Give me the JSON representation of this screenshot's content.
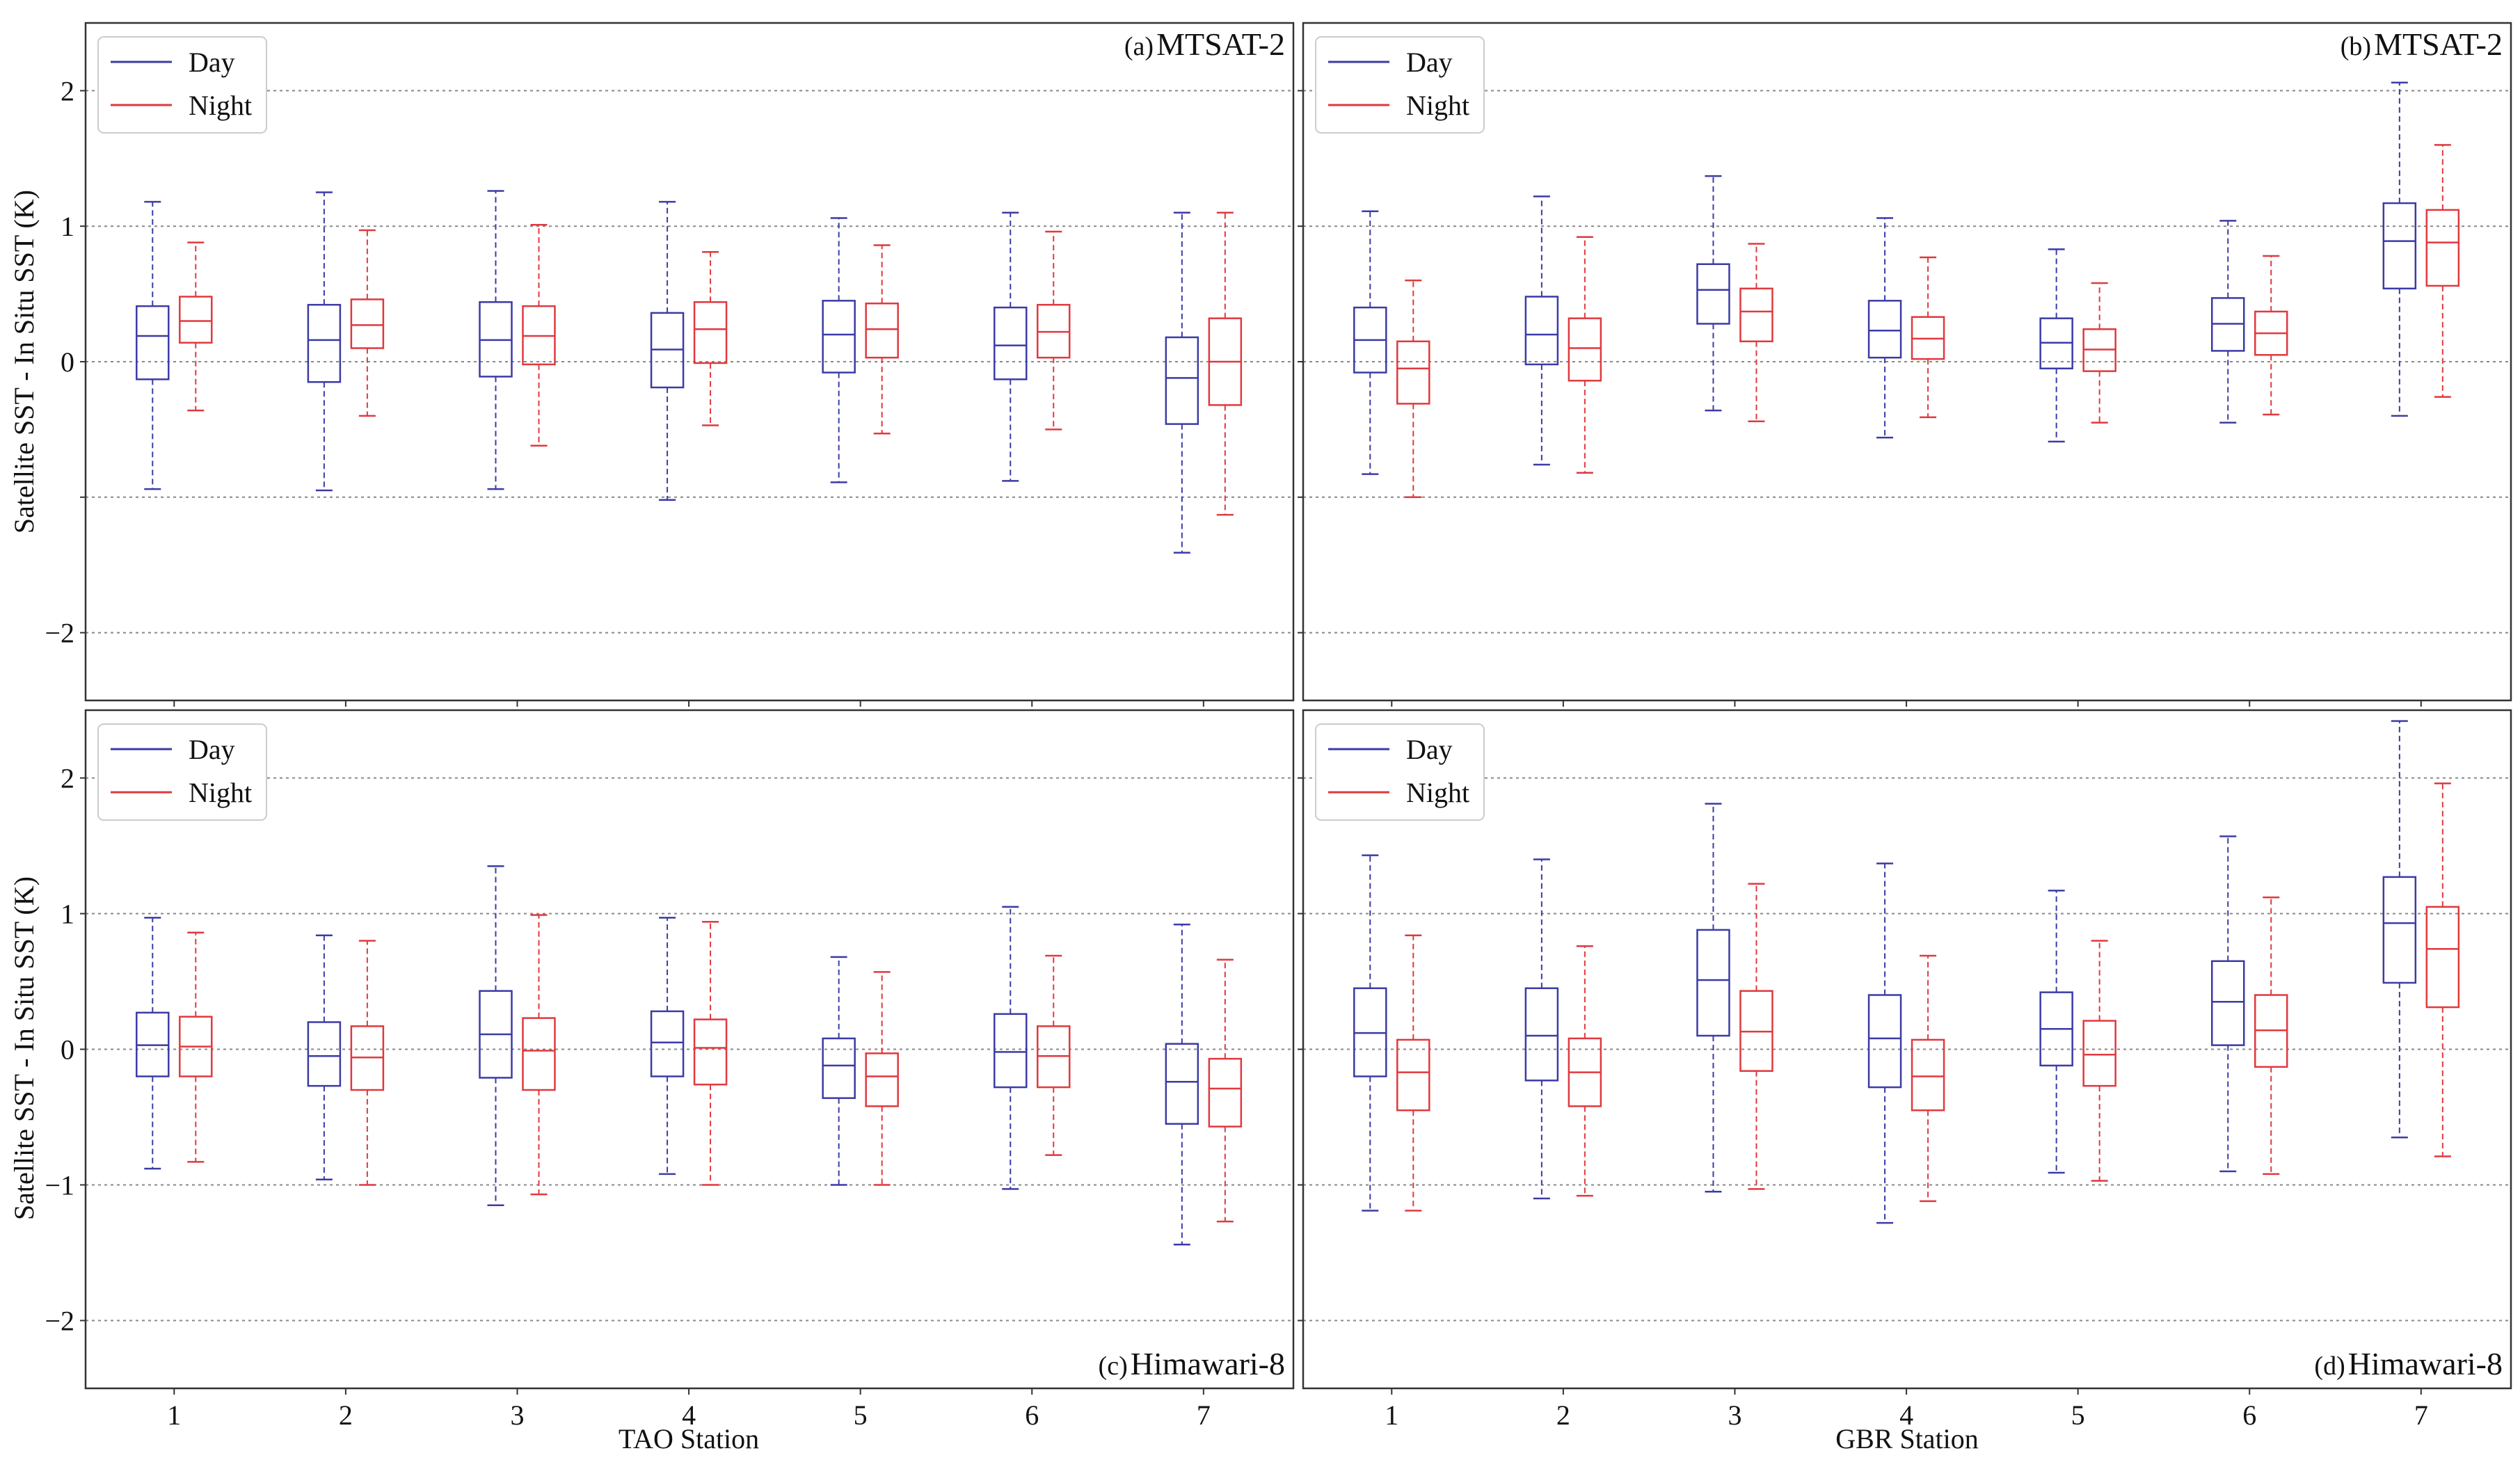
{
  "figure": {
    "ylabel": "Satellite SST - In Situ SST (K)",
    "xlabel_left": "TAO Station",
    "xlabel_right": "GBR Station"
  },
  "legend": {
    "day_label": "Day",
    "night_label": "Night"
  },
  "colors": {
    "day": "#3b3ba6",
    "night": "#e0393e",
    "grid": "#888888",
    "axis": "#333333"
  },
  "chart_data": [
    {
      "id": "a",
      "type": "box",
      "tag": "(a)",
      "title": "MTSAT-2",
      "xlabel": "",
      "ylabel": "Satellite SST - In Situ SST (K)",
      "ylim": [
        -2.5,
        2.5
      ],
      "yticks": [
        "2",
        "1",
        "0",
        "−2"
      ],
      "categories": [
        "1",
        "2",
        "3",
        "4",
        "5",
        "6",
        "7"
      ],
      "series": [
        {
          "name": "Day",
          "boxes": [
            {
              "wlo": -0.94,
              "q1": -0.13,
              "med": 0.19,
              "q3": 0.41,
              "whi": 1.18
            },
            {
              "wlo": -0.95,
              "q1": -0.15,
              "med": 0.16,
              "q3": 0.42,
              "whi": 1.25
            },
            {
              "wlo": -0.94,
              "q1": -0.11,
              "med": 0.16,
              "q3": 0.44,
              "whi": 1.26
            },
            {
              "wlo": -1.02,
              "q1": -0.19,
              "med": 0.09,
              "q3": 0.36,
              "whi": 1.18
            },
            {
              "wlo": -0.89,
              "q1": -0.08,
              "med": 0.2,
              "q3": 0.45,
              "whi": 1.06
            },
            {
              "wlo": -0.88,
              "q1": -0.13,
              "med": 0.12,
              "q3": 0.4,
              "whi": 1.1
            },
            {
              "wlo": -1.41,
              "q1": -0.46,
              "med": -0.12,
              "q3": 0.18,
              "whi": 1.1
            }
          ]
        },
        {
          "name": "Night",
          "boxes": [
            {
              "wlo": -0.36,
              "q1": 0.14,
              "med": 0.3,
              "q3": 0.48,
              "whi": 0.88
            },
            {
              "wlo": -0.4,
              "q1": 0.1,
              "med": 0.27,
              "q3": 0.46,
              "whi": 0.97
            },
            {
              "wlo": -0.62,
              "q1": -0.02,
              "med": 0.19,
              "q3": 0.41,
              "whi": 1.01
            },
            {
              "wlo": -0.47,
              "q1": -0.01,
              "med": 0.24,
              "q3": 0.44,
              "whi": 0.81
            },
            {
              "wlo": -0.53,
              "q1": 0.03,
              "med": 0.24,
              "q3": 0.43,
              "whi": 0.86
            },
            {
              "wlo": -0.5,
              "q1": 0.03,
              "med": 0.22,
              "q3": 0.42,
              "whi": 0.96
            },
            {
              "wlo": -1.13,
              "q1": -0.32,
              "med": 0.0,
              "q3": 0.32,
              "whi": 1.1
            }
          ]
        }
      ]
    },
    {
      "id": "b",
      "type": "box",
      "tag": "(b)",
      "title": "MTSAT-2",
      "xlabel": "",
      "ylabel": "",
      "ylim": [
        -2.5,
        2.5
      ],
      "yticks": [],
      "categories": [
        "1",
        "2",
        "3",
        "4",
        "5",
        "6",
        "7"
      ],
      "series": [
        {
          "name": "Day",
          "boxes": [
            {
              "wlo": -0.83,
              "q1": -0.08,
              "med": 0.16,
              "q3": 0.4,
              "whi": 1.11
            },
            {
              "wlo": -0.76,
              "q1": -0.02,
              "med": 0.2,
              "q3": 0.48,
              "whi": 1.22
            },
            {
              "wlo": -0.36,
              "q1": 0.28,
              "med": 0.53,
              "q3": 0.72,
              "whi": 1.37
            },
            {
              "wlo": -0.56,
              "q1": 0.03,
              "med": 0.23,
              "q3": 0.45,
              "whi": 1.06
            },
            {
              "wlo": -0.59,
              "q1": -0.05,
              "med": 0.14,
              "q3": 0.32,
              "whi": 0.83
            },
            {
              "wlo": -0.45,
              "q1": 0.08,
              "med": 0.28,
              "q3": 0.47,
              "whi": 1.04
            },
            {
              "wlo": -0.4,
              "q1": 0.54,
              "med": 0.89,
              "q3": 1.17,
              "whi": 2.06
            }
          ]
        },
        {
          "name": "Night",
          "boxes": [
            {
              "wlo": -1.0,
              "q1": -0.31,
              "med": -0.05,
              "q3": 0.15,
              "whi": 0.6
            },
            {
              "wlo": -0.82,
              "q1": -0.14,
              "med": 0.1,
              "q3": 0.32,
              "whi": 0.92
            },
            {
              "wlo": -0.44,
              "q1": 0.15,
              "med": 0.37,
              "q3": 0.54,
              "whi": 0.87
            },
            {
              "wlo": -0.41,
              "q1": 0.02,
              "med": 0.17,
              "q3": 0.33,
              "whi": 0.77
            },
            {
              "wlo": -0.45,
              "q1": -0.07,
              "med": 0.09,
              "q3": 0.24,
              "whi": 0.58
            },
            {
              "wlo": -0.39,
              "q1": 0.05,
              "med": 0.21,
              "q3": 0.37,
              "whi": 0.78
            },
            {
              "wlo": -0.26,
              "q1": 0.56,
              "med": 0.88,
              "q3": 1.12,
              "whi": 1.6
            }
          ]
        }
      ]
    },
    {
      "id": "c",
      "type": "box",
      "tag": "(c)",
      "title": "Himawari-8",
      "xlabel": "TAO Station",
      "ylabel": "Satellite SST - In Situ SST (K)",
      "ylim": [
        -2.5,
        2.5
      ],
      "yticks": [
        "2",
        "1",
        "0",
        "−1",
        "−2"
      ],
      "categories": [
        "1",
        "2",
        "3",
        "4",
        "5",
        "6",
        "7"
      ],
      "series": [
        {
          "name": "Day",
          "boxes": [
            {
              "wlo": -0.88,
              "q1": -0.2,
              "med": 0.03,
              "q3": 0.27,
              "whi": 0.97
            },
            {
              "wlo": -0.96,
              "q1": -0.27,
              "med": -0.05,
              "q3": 0.2,
              "whi": 0.84
            },
            {
              "wlo": -1.15,
              "q1": -0.21,
              "med": 0.11,
              "q3": 0.43,
              "whi": 1.35
            },
            {
              "wlo": -0.92,
              "q1": -0.2,
              "med": 0.05,
              "q3": 0.28,
              "whi": 0.97
            },
            {
              "wlo": -1.0,
              "q1": -0.36,
              "med": -0.12,
              "q3": 0.08,
              "whi": 0.68
            },
            {
              "wlo": -1.03,
              "q1": -0.28,
              "med": -0.02,
              "q3": 0.26,
              "whi": 1.05
            },
            {
              "wlo": -1.44,
              "q1": -0.55,
              "med": -0.24,
              "q3": 0.04,
              "whi": 0.92
            }
          ]
        },
        {
          "name": "Night",
          "boxes": [
            {
              "wlo": -0.83,
              "q1": -0.2,
              "med": 0.02,
              "q3": 0.24,
              "whi": 0.86
            },
            {
              "wlo": -1.0,
              "q1": -0.3,
              "med": -0.06,
              "q3": 0.17,
              "whi": 0.8
            },
            {
              "wlo": -1.07,
              "q1": -0.3,
              "med": -0.01,
              "q3": 0.23,
              "whi": 0.99
            },
            {
              "wlo": -1.0,
              "q1": -0.26,
              "med": 0.01,
              "q3": 0.22,
              "whi": 0.94
            },
            {
              "wlo": -1.0,
              "q1": -0.42,
              "med": -0.2,
              "q3": -0.03,
              "whi": 0.57
            },
            {
              "wlo": -0.78,
              "q1": -0.28,
              "med": -0.05,
              "q3": 0.17,
              "whi": 0.69
            },
            {
              "wlo": -1.27,
              "q1": -0.57,
              "med": -0.29,
              "q3": -0.07,
              "whi": 0.66
            }
          ]
        }
      ]
    },
    {
      "id": "d",
      "type": "box",
      "tag": "(d)",
      "title": "Himawari-8",
      "xlabel": "GBR Station",
      "ylabel": "",
      "ylim": [
        -2.5,
        2.5
      ],
      "yticks": [],
      "categories": [
        "1",
        "2",
        "3",
        "4",
        "5",
        "6",
        "7"
      ],
      "series": [
        {
          "name": "Day",
          "boxes": [
            {
              "wlo": -1.19,
              "q1": -0.2,
              "med": 0.12,
              "q3": 0.45,
              "whi": 1.43
            },
            {
              "wlo": -1.1,
              "q1": -0.23,
              "med": 0.1,
              "q3": 0.45,
              "whi": 1.4
            },
            {
              "wlo": -1.05,
              "q1": 0.1,
              "med": 0.51,
              "q3": 0.88,
              "whi": 1.81
            },
            {
              "wlo": -1.28,
              "q1": -0.28,
              "med": 0.08,
              "q3": 0.4,
              "whi": 1.37
            },
            {
              "wlo": -0.91,
              "q1": -0.12,
              "med": 0.15,
              "q3": 0.42,
              "whi": 1.17
            },
            {
              "wlo": -0.9,
              "q1": 0.03,
              "med": 0.35,
              "q3": 0.65,
              "whi": 1.57
            },
            {
              "wlo": -0.65,
              "q1": 0.49,
              "med": 0.93,
              "q3": 1.27,
              "whi": 2.42
            }
          ]
        },
        {
          "name": "Night",
          "boxes": [
            {
              "wlo": -1.19,
              "q1": -0.45,
              "med": -0.17,
              "q3": 0.07,
              "whi": 0.84
            },
            {
              "wlo": -1.08,
              "q1": -0.42,
              "med": -0.17,
              "q3": 0.08,
              "whi": 0.76
            },
            {
              "wlo": -1.03,
              "q1": -0.16,
              "med": 0.13,
              "q3": 0.43,
              "whi": 1.22
            },
            {
              "wlo": -1.12,
              "q1": -0.45,
              "med": -0.2,
              "q3": 0.07,
              "whi": 0.69
            },
            {
              "wlo": -0.97,
              "q1": -0.27,
              "med": -0.04,
              "q3": 0.21,
              "whi": 0.8
            },
            {
              "wlo": -0.92,
              "q1": -0.13,
              "med": 0.14,
              "q3": 0.4,
              "whi": 1.12
            },
            {
              "wlo": -0.79,
              "q1": 0.31,
              "med": 0.74,
              "q3": 1.05,
              "whi": 1.96
            }
          ]
        }
      ]
    }
  ]
}
